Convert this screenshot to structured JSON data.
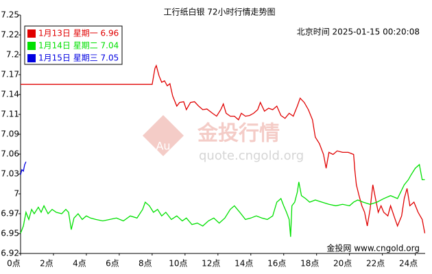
{
  "chart_data": {
    "type": "line",
    "title": "工行纸白银 72小时行情走势图",
    "timestamp": "北京时间 2025-01-15 00:20:08",
    "watermark": {
      "logo": "Au",
      "name": "金投行情",
      "url": "quote.cngold.org"
    },
    "source": "金投网 www.cngold.org",
    "xlim": [
      0,
      24.6
    ],
    "ylim": [
      6.92,
      7.25
    ],
    "xticks": [
      {
        "value": 0,
        "label": "0点"
      },
      {
        "value": 2,
        "label": "2点"
      },
      {
        "value": 4,
        "label": "4点"
      },
      {
        "value": 6,
        "label": "6点"
      },
      {
        "value": 8,
        "label": "8点"
      },
      {
        "value": 10,
        "label": "10点"
      },
      {
        "value": 12,
        "label": "12点"
      },
      {
        "value": 14,
        "label": "14点"
      },
      {
        "value": 16,
        "label": "16点"
      },
      {
        "value": 18,
        "label": "18点"
      },
      {
        "value": 20,
        "label": "20点"
      },
      {
        "value": 22,
        "label": "22点"
      },
      {
        "value": 24,
        "label": "24点"
      }
    ],
    "yticks": [
      6.92,
      {
        "value": 6.9475,
        "label": "6.95"
      },
      {
        "value": 6.975,
        "label": "6.97"
      },
      {
        "value": 7.0025,
        "label": "7"
      },
      7.03,
      {
        "value": 7.0575,
        "label": "7.06"
      },
      {
        "value": 7.085,
        "label": "7.09"
      },
      {
        "value": 7.1125,
        "label": "7.11"
      },
      7.14,
      {
        "value": 7.1675,
        "label": "7.17"
      },
      {
        "value": 7.195,
        "label": "7.2"
      },
      {
        "value": 7.2225,
        "label": "7.22"
      },
      7.25
    ],
    "series": [
      {
        "name": "1月13日 星期一 6.96",
        "color": "#e00000",
        "x": [
          0,
          8,
          8.17,
          8.25,
          8.42,
          8.58,
          8.75,
          8.92,
          9.08,
          9.25,
          9.5,
          9.67,
          9.92,
          10.08,
          10.33,
          10.58,
          10.83,
          11.08,
          11.33,
          11.67,
          11.92,
          12.17,
          12.33,
          12.5,
          12.75,
          13,
          13.25,
          13.42,
          13.67,
          13.92,
          14.17,
          14.42,
          14.58,
          14.83,
          15.08,
          15.33,
          15.58,
          15.83,
          16.08,
          16.33,
          16.58,
          16.83,
          17,
          17.25,
          17.5,
          17.75,
          17.92,
          18.17,
          18.42,
          18.58,
          18.75,
          19,
          19.25,
          19.58,
          19.92,
          20.25,
          20.33,
          20.42,
          20.58,
          20.75,
          20.92,
          21.08,
          21.25,
          21.42,
          21.58,
          21.75,
          21.92,
          22.08,
          22.33,
          22.5,
          22.75,
          22.92,
          23.17,
          23.33,
          23.5,
          23.67,
          23.92,
          24.17,
          24.42,
          24.58
        ],
        "values": [
          7.154,
          7.154,
          7.176,
          7.18,
          7.166,
          7.157,
          7.159,
          7.152,
          7.155,
          7.138,
          7.124,
          7.129,
          7.13,
          7.119,
          7.129,
          7.13,
          7.124,
          7.119,
          7.12,
          7.114,
          7.11,
          7.119,
          7.127,
          7.114,
          7.11,
          7.11,
          7.105,
          7.114,
          7.11,
          7.111,
          7.114,
          7.119,
          7.129,
          7.117,
          7.121,
          7.119,
          7.124,
          7.111,
          7.107,
          7.114,
          7.11,
          7.124,
          7.135,
          7.129,
          7.119,
          7.105,
          7.081,
          7.072,
          7.057,
          7.038,
          7.06,
          7.057,
          7.062,
          7.06,
          7.06,
          7.057,
          7.034,
          7.015,
          7.0,
          6.986,
          6.977,
          6.958,
          6.981,
          7.015,
          6.996,
          6.977,
          6.986,
          6.977,
          6.972,
          6.986,
          6.969,
          6.958,
          6.972,
          6.996,
          7.01,
          6.986,
          6.991,
          6.977,
          6.967,
          6.948
        ]
      },
      {
        "name": "1月14日 星期二 7.04",
        "color": "#00e000",
        "x": [
          0,
          0.17,
          0.33,
          0.5,
          0.67,
          0.83,
          1.08,
          1.25,
          1.42,
          1.67,
          1.92,
          2.17,
          2.5,
          2.75,
          2.92,
          3.08,
          3.25,
          3.5,
          3.75,
          4,
          4.25,
          4.58,
          5,
          5.42,
          5.83,
          6.25,
          6.67,
          7.08,
          7.42,
          7.58,
          7.83,
          8.08,
          8.33,
          8.58,
          8.83,
          9.17,
          9.5,
          9.83,
          10.08,
          10.42,
          10.75,
          11.08,
          11.42,
          11.75,
          12.08,
          12.42,
          12.75,
          13,
          13.33,
          13.67,
          14,
          14.33,
          14.67,
          15,
          15.33,
          15.58,
          15.83,
          16,
          16.17,
          16.33,
          16.42,
          16.5,
          16.67,
          16.83,
          16.92,
          17.08,
          17.33,
          17.58,
          17.92,
          18.33,
          18.75,
          19.17,
          19.58,
          20,
          20.25,
          20.5,
          20.83,
          21.25,
          21.67,
          22.08,
          22.5,
          22.92,
          23.33,
          23.58,
          23.75,
          24,
          24.25,
          24.42,
          24.58
        ],
        "values": [
          6.948,
          6.958,
          6.977,
          6.967,
          6.981,
          6.975,
          6.984,
          6.977,
          6.986,
          6.975,
          6.981,
          6.977,
          6.975,
          6.981,
          6.977,
          6.953,
          6.969,
          6.975,
          6.967,
          6.972,
          6.969,
          6.967,
          6.965,
          6.967,
          6.969,
          6.965,
          6.972,
          6.969,
          6.981,
          6.991,
          6.986,
          6.977,
          6.981,
          6.972,
          6.977,
          6.967,
          6.972,
          6.965,
          6.969,
          6.96,
          6.962,
          6.958,
          6.965,
          6.969,
          6.962,
          6.969,
          6.981,
          6.986,
          6.977,
          6.967,
          6.969,
          6.972,
          6.969,
          6.967,
          6.972,
          6.991,
          6.996,
          6.986,
          6.977,
          6.967,
          6.943,
          6.986,
          6.991,
          7.005,
          7.019,
          7.0,
          6.996,
          6.991,
          6.994,
          6.991,
          6.988,
          6.986,
          6.988,
          6.986,
          6.991,
          6.994,
          6.991,
          6.988,
          6.991,
          6.996,
          7.0,
          6.996,
          7.015,
          7.022,
          7.029,
          7.038,
          7.043,
          7.022,
          7.022
        ]
      },
      {
        "name": "1月15日 星期三 7.05",
        "color": "#0000e0",
        "x": [
          0,
          0.08,
          0.17,
          0.25,
          0.33
        ],
        "values": [
          7.029,
          7.036,
          7.034,
          7.043,
          7.047
        ]
      }
    ]
  }
}
